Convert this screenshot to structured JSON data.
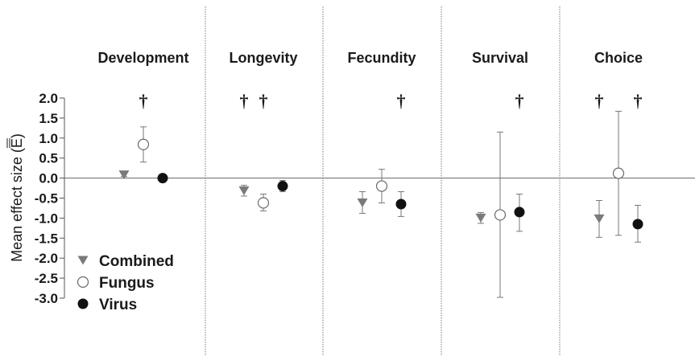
{
  "chart_data": {
    "type": "scatter",
    "ylabel_prefix": "Mean effect size (",
    "ylabel_symbol": "E",
    "ylabel_suffix": ")",
    "ylim": [
      -3.0,
      2.0
    ],
    "yticks": [
      "2.0",
      "1.5",
      "1.0",
      "0.5",
      "0.0",
      "-0.5",
      "-1.0",
      "-1.5",
      "-2.0",
      "-2.5",
      "-3.0"
    ],
    "ytick_values": [
      2.0,
      1.5,
      1.0,
      0.5,
      0.0,
      -0.5,
      -1.0,
      -1.5,
      -2.0,
      -2.5,
      -3.0
    ],
    "categories": [
      "Development",
      "Longevity",
      "Fecundity",
      "Survival",
      "Choice"
    ],
    "series": [
      {
        "name": "Combined",
        "marker": "triangle-down",
        "color": "#7a7a7a",
        "values": [
          0.08,
          -0.32,
          -0.62,
          -1.0,
          -1.02
        ],
        "ci_low": [
          0.04,
          -0.45,
          -0.88,
          -1.13,
          -1.48
        ],
        "ci_high": [
          0.12,
          -0.18,
          -0.34,
          -0.86,
          -0.56
        ]
      },
      {
        "name": "Fungus",
        "marker": "open-circle",
        "color": "#6a6a6a",
        "values": [
          0.84,
          -0.62,
          -0.2,
          -0.92,
          0.12
        ],
        "ci_low": [
          0.4,
          -0.82,
          -0.62,
          -2.98,
          -1.43
        ],
        "ci_high": [
          1.28,
          -0.4,
          0.22,
          1.15,
          1.67
        ]
      },
      {
        "name": "Virus",
        "marker": "filled-circle",
        "color": "#111111",
        "values": [
          0.0,
          -0.2,
          -0.65,
          -0.85,
          -1.15
        ],
        "ci_low": [
          -0.02,
          -0.34,
          -0.96,
          -1.33,
          -1.6
        ],
        "ci_high": [
          0.02,
          -0.06,
          -0.34,
          -0.4,
          -0.68
        ]
      }
    ],
    "significance_marks": [
      {
        "category": "Development",
        "series": "Fungus",
        "symbol": "†"
      },
      {
        "category": "Longevity",
        "series": "Combined",
        "symbol": "†"
      },
      {
        "category": "Longevity",
        "series": "Fungus",
        "symbol": "†"
      },
      {
        "category": "Fecundity",
        "series": "Virus",
        "symbol": "†"
      },
      {
        "category": "Survival",
        "series": "Virus",
        "symbol": "†"
      },
      {
        "category": "Choice",
        "series": "Combined",
        "symbol": "†"
      },
      {
        "category": "Choice",
        "series": "Virus",
        "symbol": "†"
      }
    ],
    "legend_position": "bottom-left",
    "zero_line": true,
    "category_dividers": true,
    "grid": false
  }
}
